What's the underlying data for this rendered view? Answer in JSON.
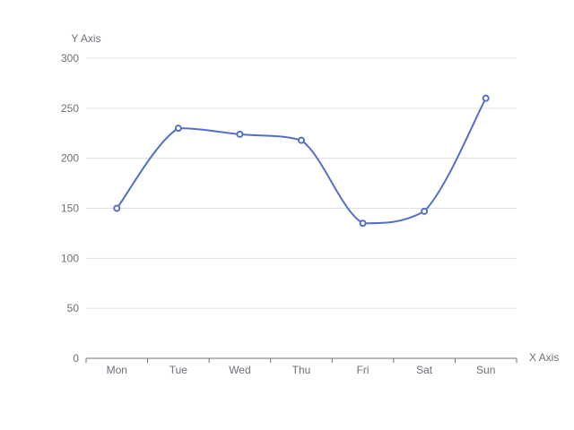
{
  "chart_data": {
    "type": "line",
    "smooth": true,
    "xlabel": "X Axis",
    "ylabel": "Y Axis",
    "categories": [
      "Mon",
      "Tue",
      "Wed",
      "Thu",
      "Fri",
      "Sat",
      "Sun"
    ],
    "series": [
      {
        "values": [
          150,
          230,
          224,
          218,
          135,
          147,
          260
        ],
        "color": "#5470c6"
      }
    ],
    "ylim": [
      0,
      300
    ],
    "yticks": [
      0,
      50,
      100,
      150,
      200,
      250,
      300
    ],
    "grid": true
  }
}
